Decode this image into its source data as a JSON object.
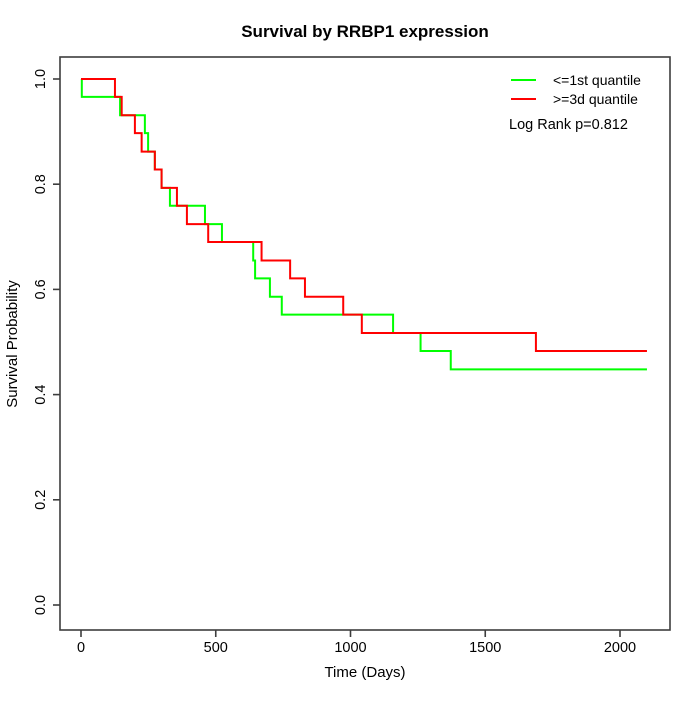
{
  "chart_data": {
    "type": "line",
    "subtype": "kaplan-meier-step",
    "title": "Survival by RRBP1 expression",
    "xlabel": "Time (Days)",
    "ylabel": "Survival Probability",
    "xlim": [
      0,
      2100
    ],
    "ylim": [
      0.0,
      1.0
    ],
    "x_ticks": [
      "0",
      "500",
      "1000",
      "1500",
      "2000"
    ],
    "y_ticks": [
      "0.0",
      "0.2",
      "0.4",
      "0.6",
      "0.8",
      "1.0"
    ],
    "grid": false,
    "legend_position": "top-right",
    "annotation": "Log Rank p=0.812",
    "colors": {
      "group1": "#00ff00",
      "group2": "#ff0000",
      "axis": "#3d3d3d",
      "text": "#000000"
    },
    "series": [
      {
        "name": "<=1st quantile",
        "color": "#00ff00",
        "end_time": 2100,
        "steps": [
          [
            0,
            1.0
          ],
          [
            3,
            0.966
          ],
          [
            145,
            0.931
          ],
          [
            237,
            0.897
          ],
          [
            249,
            0.862
          ],
          [
            274,
            0.828
          ],
          [
            299,
            0.793
          ],
          [
            330,
            0.759
          ],
          [
            460,
            0.724
          ],
          [
            523,
            0.69
          ],
          [
            639,
            0.655
          ],
          [
            646,
            0.621
          ],
          [
            701,
            0.586
          ],
          [
            745,
            0.552
          ],
          [
            1158,
            0.517
          ],
          [
            1260,
            0.483
          ],
          [
            1372,
            0.448
          ]
        ]
      },
      {
        "name": ">=3d quantile",
        "color": "#ff0000",
        "end_time": 2100,
        "steps": [
          [
            0,
            1.0
          ],
          [
            126,
            0.966
          ],
          [
            151,
            0.931
          ],
          [
            200,
            0.897
          ],
          [
            225,
            0.862
          ],
          [
            274,
            0.828
          ],
          [
            299,
            0.793
          ],
          [
            356,
            0.759
          ],
          [
            393,
            0.724
          ],
          [
            472,
            0.69
          ],
          [
            670,
            0.655
          ],
          [
            776,
            0.621
          ],
          [
            831,
            0.586
          ],
          [
            973,
            0.552
          ],
          [
            1042,
            0.517
          ],
          [
            1688,
            0.483
          ]
        ]
      }
    ]
  }
}
